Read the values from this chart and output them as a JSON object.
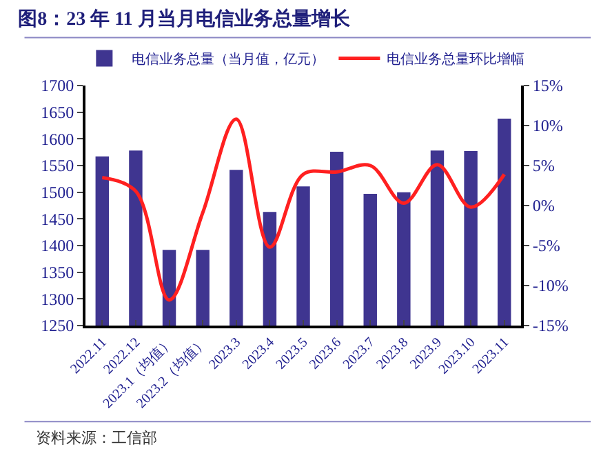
{
  "chart_data": {
    "type": "bar",
    "title": "图8：23 年 11 月当月电信业务总量增长",
    "categories": [
      "2022.11",
      "2022.12",
      "2023.1（均值）",
      "2023.2（均值）",
      "2023.3",
      "2023.4",
      "2023.5",
      "2023.6",
      "2023.7",
      "2023.8",
      "2023.9",
      "2023.10",
      "2023.11"
    ],
    "series": [
      {
        "name": "电信业务总量（当月值，亿元）",
        "color": "#3f3590",
        "values": [
          1567,
          1578,
          1392,
          1392,
          1542,
          1463,
          1511,
          1576,
          1497,
          1500,
          1578,
          1577,
          1638
        ]
      },
      {
        "name": "电信业务总量环比增幅",
        "type": "line",
        "axis": "y2",
        "color": "#ff2020",
        "values": [
          3.5,
          1.8,
          -11.8,
          -0.9,
          10.8,
          -5.2,
          3.9,
          4.2,
          5.0,
          0.3,
          5.1,
          -0.2,
          3.9
        ]
      }
    ],
    "ylim": [
      1250,
      1700
    ],
    "yticks": [
      1250,
      1300,
      1350,
      1400,
      1450,
      1500,
      1550,
      1600,
      1650,
      1700
    ],
    "y2lim": [
      -15,
      15
    ],
    "y2ticks": [
      {
        "value": -15,
        "label": "-15%"
      },
      {
        "value": -10,
        "label": "-10%"
      },
      {
        "value": -5,
        "label": "-5%"
      },
      {
        "value": 0,
        "label": "0%"
      },
      {
        "value": 5,
        "label": "5%"
      },
      {
        "value": 10,
        "label": "10%"
      },
      {
        "value": 15,
        "label": "15%"
      }
    ],
    "grid": false,
    "legend": "top",
    "marker": "none",
    "line_style": "solid",
    "annotations": [
      "资料来源：工信部"
    ]
  }
}
